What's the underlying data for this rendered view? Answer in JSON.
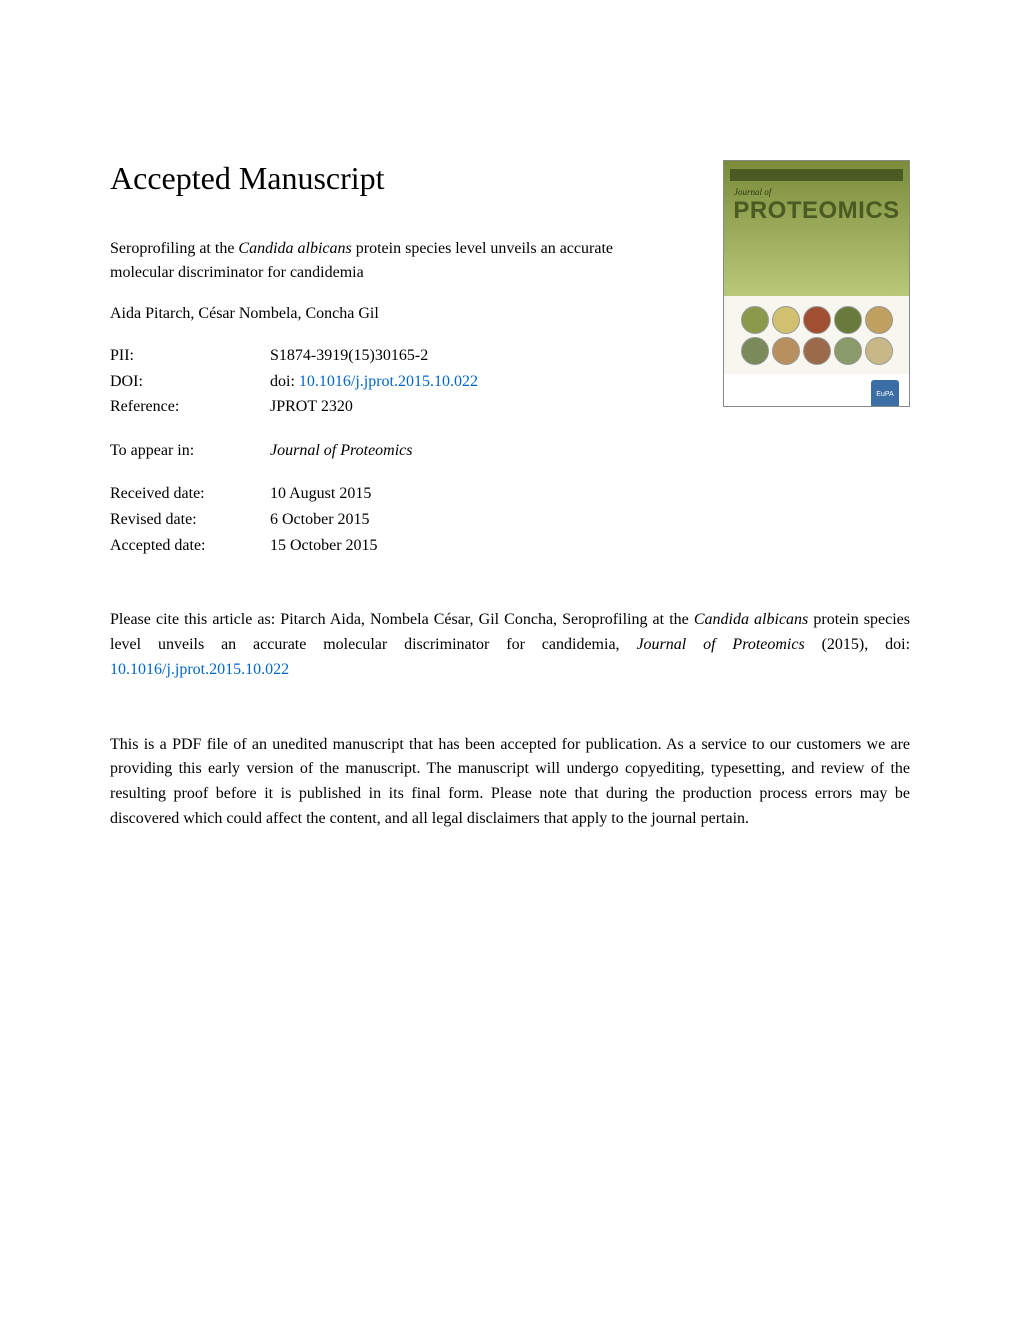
{
  "heading": "Accepted Manuscript",
  "article": {
    "title_pre": "Seroprofiling at the ",
    "title_italic": "Candida albicans",
    "title_post": " protein species level unveils an accurate molecular discriminator for candidemia",
    "authors": "Aida Pitarch, César Nombela, Concha Gil"
  },
  "meta": {
    "pii_label": "PII:",
    "pii_value": "S1874-3919(15)30165-2",
    "doi_label": "DOI:",
    "doi_prefix": "doi: ",
    "doi_link": "10.1016/j.jprot.2015.10.022",
    "reference_label": "Reference:",
    "reference_value": "JPROT 2320",
    "appear_label": "To appear in:",
    "appear_value": "Journal of Proteomics",
    "received_label": "Received date:",
    "received_value": "10 August 2015",
    "revised_label": "Revised date:",
    "revised_value": "6 October 2015",
    "accepted_label": "Accepted date:",
    "accepted_value": "15 October 2015"
  },
  "citation": {
    "pre": "Please cite this article as: Pitarch Aida, Nombela César, Gil Concha, Seroprofiling at the ",
    "italic1": "Candida albicans",
    "mid": " protein species level unveils an accurate molecular discriminator for candidemia, ",
    "italic2": "Journal of Proteomics",
    "post": " (2015),  doi: ",
    "link": "10.1016/j.jprot.2015.10.022"
  },
  "disclaimer": "This is a PDF file of an unedited manuscript that has been accepted for publication. As a service to our customers we are providing this early version of the manuscript. The manuscript will undergo copyediting, typesetting, and review of the resulting proof before it is published in its final form. Please note that during the production process errors may be discovered which could affect the content, and all legal disclaimers that apply to the journal pertain.",
  "cover": {
    "journal_small": "Journal of",
    "journal_title": "PROTEOMICS",
    "eupa": "EuPA",
    "background_top": "#7a8c3a",
    "title_color": "#4a5a22",
    "thumb_colors": [
      "#8a9a4a",
      "#d0c070",
      "#a05030",
      "#6a7a3a",
      "#c0a060",
      "#7a8a5a",
      "#b89060",
      "#9a6a4a",
      "#8a9a6a",
      "#c8b888"
    ]
  },
  "link_color": "#0066cc"
}
